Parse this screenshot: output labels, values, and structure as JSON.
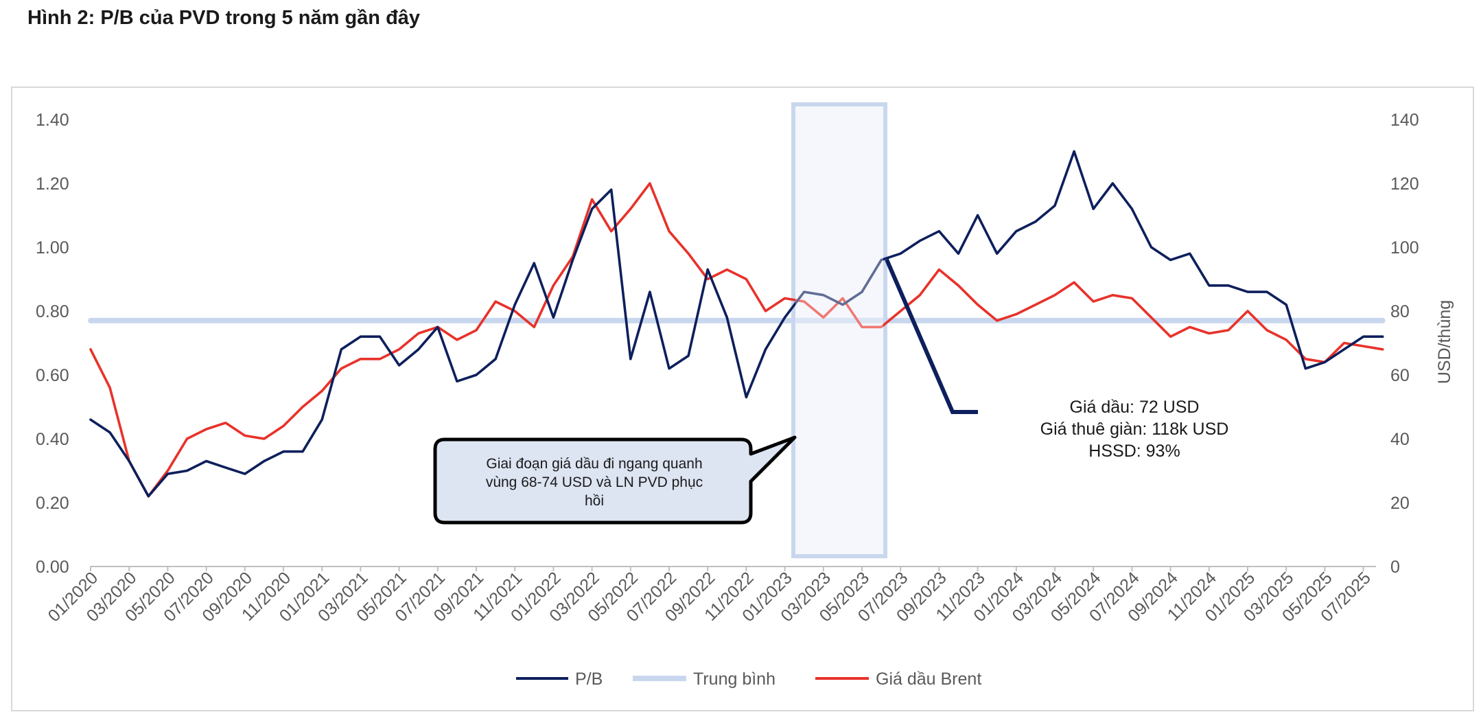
{
  "title": "Hình 2: P/B của PVD trong 5 năm gần đây",
  "chart_data": {
    "type": "line",
    "title": "Hình 2: P/B của PVD trong 5 năm gần đây",
    "xlabel": "",
    "ylabel_left": "",
    "ylabel_right": "USD/thùng",
    "x_tick_labels": [
      "01/2020",
      "03/2020",
      "05/2020",
      "07/2020",
      "09/2020",
      "11/2020",
      "01/2021",
      "03/2021",
      "05/2021",
      "07/2021",
      "09/2021",
      "11/2021",
      "01/2022",
      "03/2022",
      "05/2022",
      "07/2022",
      "09/2022",
      "11/2022",
      "01/2023",
      "03/2023",
      "05/2023",
      "07/2023",
      "09/2023",
      "11/2023",
      "01/2024",
      "03/2024",
      "05/2024",
      "07/2024",
      "09/2024",
      "11/2024",
      "01/2025",
      "03/2025",
      "05/2025",
      "07/2025"
    ],
    "y_left_ticks": [
      "0.00",
      "0.20",
      "0.40",
      "0.60",
      "0.80",
      "1.00",
      "1.20",
      "1.40"
    ],
    "y_right_ticks": [
      "0",
      "20",
      "40",
      "60",
      "80",
      "100",
      "120",
      "140"
    ],
    "ylim_left": [
      0,
      1.4
    ],
    "ylim_right": [
      0,
      140
    ],
    "grid": false,
    "legend_position": "bottom",
    "series": [
      {
        "name": "P/B",
        "axis": "left",
        "color": "#0d1f5c",
        "points": [
          [
            "2020-01",
            0.46
          ],
          [
            "2020-02",
            0.42
          ],
          [
            "2020-03",
            0.33
          ],
          [
            "2020-04",
            0.22
          ],
          [
            "2020-05",
            0.29
          ],
          [
            "2020-06",
            0.3
          ],
          [
            "2020-07",
            0.33
          ],
          [
            "2020-08",
            0.31
          ],
          [
            "2020-09",
            0.29
          ],
          [
            "2020-10",
            0.33
          ],
          [
            "2020-11",
            0.36
          ],
          [
            "2020-12",
            0.36
          ],
          [
            "2021-01",
            0.46
          ],
          [
            "2021-02",
            0.68
          ],
          [
            "2021-03",
            0.72
          ],
          [
            "2021-04",
            0.72
          ],
          [
            "2021-05",
            0.63
          ],
          [
            "2021-06",
            0.68
          ],
          [
            "2021-07",
            0.75
          ],
          [
            "2021-08",
            0.58
          ],
          [
            "2021-09",
            0.6
          ],
          [
            "2021-10",
            0.65
          ],
          [
            "2021-11",
            0.82
          ],
          [
            "2021-12",
            0.95
          ],
          [
            "2022-01",
            0.78
          ],
          [
            "2022-02",
            0.96
          ],
          [
            "2022-03",
            1.12
          ],
          [
            "2022-04",
            1.18
          ],
          [
            "2022-05",
            0.65
          ],
          [
            "2022-06",
            0.86
          ],
          [
            "2022-07",
            0.62
          ],
          [
            "2022-08",
            0.66
          ],
          [
            "2022-09",
            0.93
          ],
          [
            "2022-10",
            0.78
          ],
          [
            "2022-11",
            0.53
          ],
          [
            "2022-12",
            0.68
          ],
          [
            "2023-01",
            0.78
          ],
          [
            "2023-02",
            0.86
          ],
          [
            "2023-03",
            0.85
          ],
          [
            "2023-04",
            0.82
          ],
          [
            "2023-05",
            0.86
          ],
          [
            "2023-06",
            0.96
          ],
          [
            "2023-07",
            0.98
          ],
          [
            "2023-08",
            1.02
          ],
          [
            "2023-09",
            1.05
          ],
          [
            "2023-10",
            0.98
          ],
          [
            "2023-11",
            1.1
          ],
          [
            "2023-12",
            0.98
          ],
          [
            "2024-01",
            1.05
          ],
          [
            "2024-02",
            1.08
          ],
          [
            "2024-03",
            1.13
          ],
          [
            "2024-04",
            1.3
          ],
          [
            "2024-05",
            1.12
          ],
          [
            "2024-06",
            1.2
          ],
          [
            "2024-07",
            1.12
          ],
          [
            "2024-08",
            1.0
          ],
          [
            "2024-09",
            0.96
          ],
          [
            "2024-10",
            0.98
          ],
          [
            "2024-11",
            0.88
          ],
          [
            "2024-12",
            0.88
          ],
          [
            "2025-01",
            0.86
          ],
          [
            "2025-02",
            0.86
          ],
          [
            "2025-03",
            0.82
          ],
          [
            "2025-04",
            0.62
          ],
          [
            "2025-05",
            0.64
          ],
          [
            "2025-06",
            0.68
          ],
          [
            "2025-07",
            0.72
          ],
          [
            "2025-08",
            0.72
          ]
        ]
      },
      {
        "name": "Trung bình",
        "axis": "left",
        "color": "#c9d7ee",
        "points": [
          [
            "2020-01",
            0.77
          ],
          [
            "2025-08",
            0.77
          ]
        ]
      },
      {
        "name": "Giá dầu Brent",
        "axis": "right",
        "color": "#e8322a",
        "points": [
          [
            "2020-01",
            68
          ],
          [
            "2020-02",
            56
          ],
          [
            "2020-03",
            33
          ],
          [
            "2020-04",
            22
          ],
          [
            "2020-05",
            30
          ],
          [
            "2020-06",
            40
          ],
          [
            "2020-07",
            43
          ],
          [
            "2020-08",
            45
          ],
          [
            "2020-09",
            41
          ],
          [
            "2020-10",
            40
          ],
          [
            "2020-11",
            44
          ],
          [
            "2020-12",
            50
          ],
          [
            "2021-01",
            55
          ],
          [
            "2021-02",
            62
          ],
          [
            "2021-03",
            65
          ],
          [
            "2021-04",
            65
          ],
          [
            "2021-05",
            68
          ],
          [
            "2021-06",
            73
          ],
          [
            "2021-07",
            75
          ],
          [
            "2021-08",
            71
          ],
          [
            "2021-09",
            74
          ],
          [
            "2021-10",
            83
          ],
          [
            "2021-11",
            80
          ],
          [
            "2021-12",
            75
          ],
          [
            "2022-01",
            88
          ],
          [
            "2022-02",
            97
          ],
          [
            "2022-03",
            115
          ],
          [
            "2022-04",
            105
          ],
          [
            "2022-05",
            112
          ],
          [
            "2022-06",
            120
          ],
          [
            "2022-07",
            105
          ],
          [
            "2022-08",
            98
          ],
          [
            "2022-09",
            90
          ],
          [
            "2022-10",
            93
          ],
          [
            "2022-11",
            90
          ],
          [
            "2022-12",
            80
          ],
          [
            "2023-01",
            84
          ],
          [
            "2023-02",
            83
          ],
          [
            "2023-03",
            78
          ],
          [
            "2023-04",
            84
          ],
          [
            "2023-05",
            75
          ],
          [
            "2023-06",
            75
          ],
          [
            "2023-07",
            80
          ],
          [
            "2023-08",
            85
          ],
          [
            "2023-09",
            93
          ],
          [
            "2023-10",
            88
          ],
          [
            "2023-11",
            82
          ],
          [
            "2023-12",
            77
          ],
          [
            "2024-01",
            79
          ],
          [
            "2024-02",
            82
          ],
          [
            "2024-03",
            85
          ],
          [
            "2024-04",
            89
          ],
          [
            "2024-05",
            83
          ],
          [
            "2024-06",
            85
          ],
          [
            "2024-07",
            84
          ],
          [
            "2024-08",
            78
          ],
          [
            "2024-09",
            72
          ],
          [
            "2024-10",
            75
          ],
          [
            "2024-11",
            73
          ],
          [
            "2024-12",
            74
          ],
          [
            "2025-01",
            80
          ],
          [
            "2025-02",
            74
          ],
          [
            "2025-03",
            71
          ],
          [
            "2025-04",
            65
          ],
          [
            "2025-05",
            64
          ],
          [
            "2025-06",
            70
          ],
          [
            "2025-07",
            69
          ],
          [
            "2025-08",
            68
          ]
        ]
      }
    ],
    "annotations": {
      "callout": [
        "Giai đoạn giá dầu đi ngang quanh",
        "vùng 68-74 USD và LN PVD phục",
        "hồi"
      ],
      "note": [
        "Giá dầu: 72 USD",
        "Giá thuê giàn: 118k USD",
        "HSSD: 93%"
      ]
    }
  },
  "colors": {
    "pb": "#0d1f5c",
    "avg": "#c9d7ee",
    "brent": "#e8322a",
    "highlight_fill": "#e9eef8",
    "highlight_border": "#c9d7ee",
    "callout_fill": "#dde4f2"
  }
}
